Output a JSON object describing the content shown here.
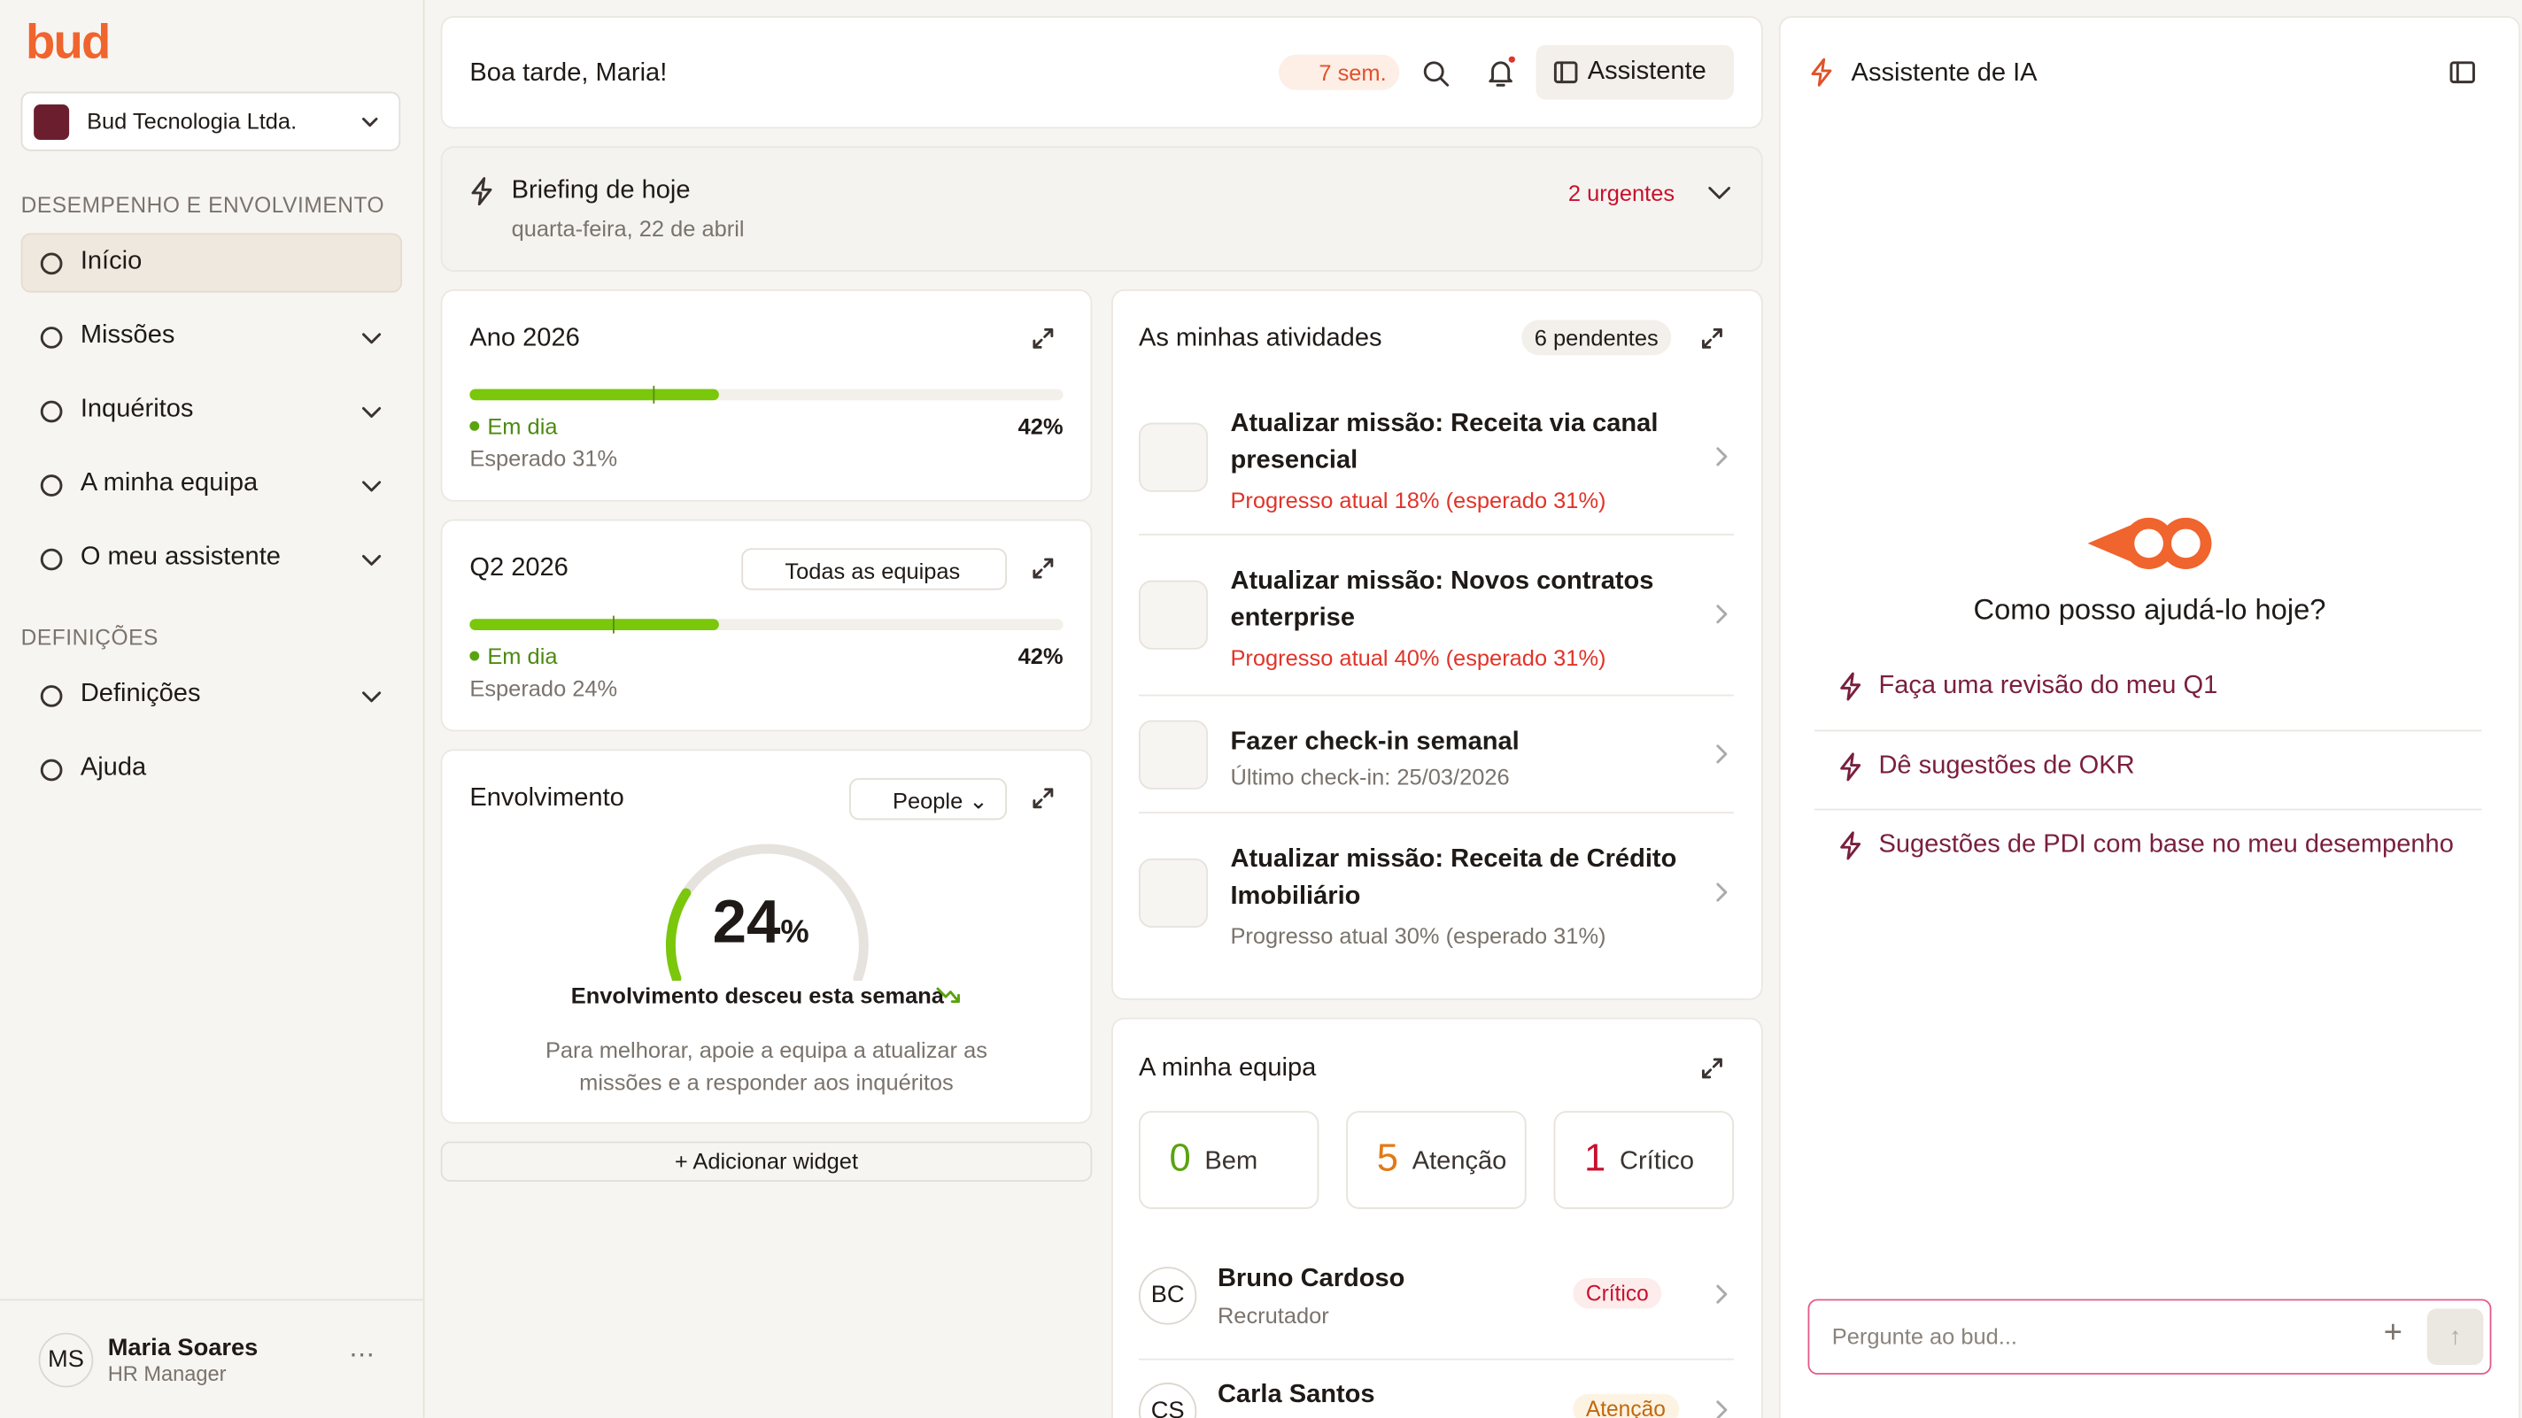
{
  "sidebar": {
    "logo": "bud",
    "company": "Bud Tecnologia Ltda.",
    "sections": [
      {
        "title": "DESEMPENHO E ENVOLVIMENTO",
        "items": [
          "Início",
          "Missões",
          "Inquéritos",
          "A minha equipa",
          "O meu assistente"
        ]
      },
      {
        "title": "DEFINIÇÕES",
        "items": [
          "Definições",
          "Ajuda"
        ]
      }
    ],
    "user": {
      "initials": "MS",
      "name": "Maria Soares",
      "role": "HR Manager"
    }
  },
  "header": {
    "greeting": "Boa tarde, Maria!",
    "streak": "7 sem.",
    "assistant_button": "Assistente"
  },
  "briefing": {
    "title": "Briefing de hoje",
    "date": "quarta-feira, 22 de abril",
    "urgent": "2 urgentes"
  },
  "widgets": {
    "year": {
      "title": "Ano 2026",
      "status": "Em dia",
      "progress": {
        "value": 42,
        "label": "42%"
      },
      "expected": {
        "value": 31,
        "label": "Esperado 31%"
      }
    },
    "quarter": {
      "title": "Q2 2026",
      "filter": "Todas as equipas",
      "status": "Em dia",
      "progress": {
        "value": 42,
        "label": "42%"
      },
      "expected": {
        "value": 24,
        "label": "Esperado 24%"
      }
    },
    "engagement": {
      "title": "Envolvimento",
      "filter": "People",
      "value": {
        "value": 24,
        "label": "24"
      },
      "unit": "%",
      "trend": "Envolvimento desceu esta semana",
      "tip": "Para melhorar, apoie a equipa a atualizar as missões e a responder aos inquéritos"
    },
    "add": "Adicionar widget"
  },
  "activities": {
    "title": "As minhas atividades",
    "pending": "6 pendentes",
    "items": [
      {
        "title": "Atualizar missão: Receita via canal presencial",
        "subtitle": "Progresso atual 18% (esperado 31%)",
        "alert": true
      },
      {
        "title": "Atualizar missão: Novos contratos enterprise",
        "subtitle": "Progresso atual 40% (esperado 31%)",
        "alert": true
      },
      {
        "title": "Fazer check-in semanal",
        "subtitle": "Último check-in: 25/03/2026",
        "alert": false
      },
      {
        "title": "Atualizar missão: Receita de Crédito Imobiliário",
        "subtitle": "Progresso atual 30% (esperado 31%)",
        "alert": false
      }
    ]
  },
  "team": {
    "title": "A minha equipa",
    "counts": [
      {
        "value": "0",
        "label": "Bem",
        "color": "#5aa310"
      },
      {
        "value": "5",
        "label": "Atenção",
        "color": "#e07b16"
      },
      {
        "value": "1",
        "label": "Crítico",
        "color": "#c8102e"
      }
    ],
    "members": [
      {
        "initials": "BC",
        "name": "Bruno Cardoso",
        "role": "Recrutador",
        "status": "Crítico",
        "color": "#c8102e",
        "bg": "#fdecec"
      },
      {
        "initials": "CS",
        "name": "Carla Santos",
        "status": "Atenção",
        "color": "#c0680d",
        "bg": "#fdf3e3"
      }
    ]
  },
  "assistant": {
    "title": "Assistente de IA",
    "question": "Como posso ajudá-lo hoje?",
    "suggestions": [
      "Faça uma revisão do meu Q1",
      "Dê sugestões de OKR",
      "Sugestões de PDI com base no meu desempenho"
    ],
    "placeholder": "Pergunte ao bud..."
  }
}
